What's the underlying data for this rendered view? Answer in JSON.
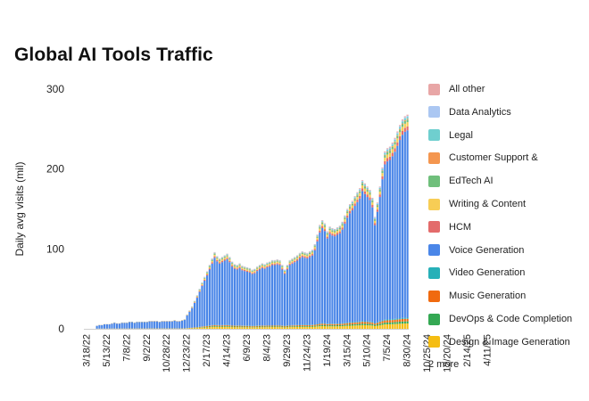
{
  "chart_data": {
    "type": "bar",
    "stacked": true,
    "title": "Global AI Tools Traffic",
    "ylabel": "Daily avg visits (mil)",
    "xlabel": "",
    "ylim": [
      0,
      300
    ],
    "yticks": [
      0,
      100,
      200,
      300
    ],
    "grid": false,
    "legend_position": "right",
    "xtick_labels": [
      "3/18/22",
      "5/13/22",
      "7/8/22",
      "9/2/22",
      "10/28/22",
      "12/23/22",
      "2/17/23",
      "4/14/23",
      "6/9/23",
      "8/4/23",
      "9/29/23",
      "11/24/23",
      "1/19/24",
      "3/15/24",
      "5/10/24",
      "7/5/24",
      "8/30/24",
      "10/25/24",
      "12/20/24",
      "2/14/25",
      "4/11/25"
    ],
    "x_start": "2022-03-18",
    "bar_interval_days": 7,
    "x_tick_every_n_bars": 8,
    "totals": [
      0,
      0,
      0,
      0,
      4,
      5,
      5,
      6,
      6,
      6,
      7,
      8,
      7,
      7,
      8,
      8,
      8,
      9,
      9,
      8,
      9,
      9,
      9,
      9,
      9,
      10,
      10,
      10,
      10,
      9,
      10,
      10,
      10,
      10,
      10,
      11,
      10,
      10,
      11,
      12,
      18,
      23,
      28,
      35,
      42,
      50,
      58,
      65,
      72,
      80,
      88,
      96,
      91,
      88,
      90,
      92,
      94,
      90,
      84,
      81,
      80,
      82,
      79,
      78,
      77,
      76,
      74,
      75,
      78,
      80,
      82,
      81,
      83,
      84,
      86,
      86,
      87,
      86,
      80,
      74,
      80,
      86,
      88,
      90,
      92,
      95,
      97,
      96,
      95,
      97,
      99,
      106,
      118,
      130,
      136,
      132,
      122,
      128,
      126,
      125,
      127,
      129,
      134,
      142,
      150,
      156,
      160,
      166,
      171,
      176,
      186,
      182,
      178,
      174,
      164,
      140,
      158,
      178,
      202,
      222,
      226,
      228,
      233,
      239,
      247,
      255,
      262,
      266,
      268
    ],
    "series": [
      {
        "name": "Design & Image Generation",
        "share": 0.025
      },
      {
        "name": "DevOps & Code Completion",
        "share": 0.01
      },
      {
        "name": "Music Generation",
        "share": 0.012
      },
      {
        "name": "Video Generation",
        "share": 0.005
      },
      {
        "name": "Voice Generation",
        "share": 0.875
      },
      {
        "name": "HCM",
        "share": 0.018
      },
      {
        "name": "Writing & Content",
        "share": 0.02
      },
      {
        "name": "EdTech AI",
        "share": 0.012
      },
      {
        "name": "Customer Support &",
        "share": 0.004
      },
      {
        "name": "Legal",
        "share": 0.009
      },
      {
        "name": "Data Analytics",
        "share": 0.005
      },
      {
        "name": "All other",
        "share": 0.005
      }
    ],
    "legend_more": "2 more"
  },
  "colors": {
    "All other": "#e8a6a6",
    "Data Analytics": "#abc7f2",
    "Legal": "#6fcfcf",
    "Customer Support &": "#f4964f",
    "EdTech AI": "#6fbf7b",
    "Writing & Content": "#f7cd55",
    "HCM": "#e36b6b",
    "Voice Generation": "#4a86e8",
    "Video Generation": "#27b0b8",
    "Music Generation": "#f06a0f",
    "DevOps & Code Completion": "#34a853",
    "Design & Image Generation": "#f5bd12"
  },
  "legend_order": [
    "All other",
    "Data Analytics",
    "Legal",
    "Customer Support &",
    "EdTech AI",
    "Writing & Content",
    "HCM",
    "Voice Generation",
    "Video Generation",
    "Music Generation",
    "DevOps & Code Completion",
    "Design & Image Generation"
  ]
}
